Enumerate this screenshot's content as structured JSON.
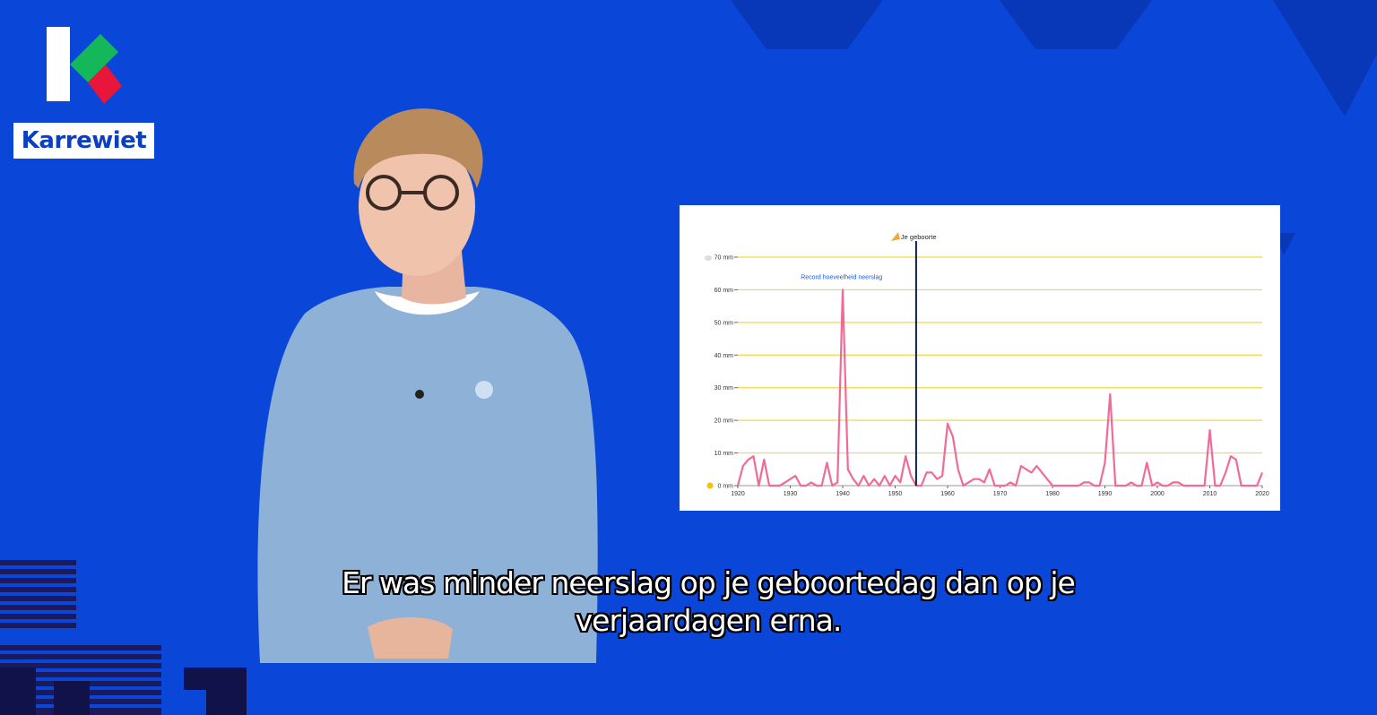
{
  "brand": {
    "name": "Karrewiet"
  },
  "icons": {
    "birth_marker": "party-popper-icon",
    "y_top_icon": "cloud-icon",
    "y_bottom_icon": "sun-icon"
  },
  "colors": {
    "background": "#0a46d8",
    "line": "#f06a9a",
    "grid": "#f5d742",
    "marker": "#0a1f5c",
    "annotation": "#1a5be0"
  },
  "chart_data": {
    "type": "line",
    "xlabel": "",
    "ylabel": "",
    "x_ticks": [
      "1920",
      "1930",
      "1940",
      "1950",
      "1960",
      "1970",
      "1980",
      "1990",
      "2000",
      "2010",
      "2020"
    ],
    "y_ticks": [
      "0 mm",
      "10 mm",
      "20 mm",
      "30 mm",
      "40 mm",
      "50 mm",
      "60 mm",
      "70 mm"
    ],
    "xlim": [
      1920,
      2020
    ],
    "ylim": [
      0,
      70
    ],
    "grid": true,
    "marker": {
      "x": 1954,
      "label": "Je geboorte"
    },
    "annotation": {
      "text": "Record hoeveelheid neerslag",
      "x": 1940,
      "y": 60
    },
    "series": [
      {
        "x": [
          1920,
          1921,
          1922,
          1923,
          1924,
          1925,
          1926,
          1927,
          1928,
          1929,
          1930,
          1931,
          1932,
          1933,
          1934,
          1935,
          1936,
          1937,
          1938,
          1939,
          1940,
          1941,
          1942,
          1943,
          1944,
          1945,
          1946,
          1947,
          1948,
          1949,
          1950,
          1951,
          1952,
          1953,
          1954,
          1955,
          1956,
          1957,
          1958,
          1959,
          1960,
          1961,
          1962,
          1963,
          1964,
          1965,
          1966,
          1967,
          1968,
          1969,
          1970,
          1971,
          1972,
          1973,
          1974,
          1975,
          1976,
          1977,
          1978,
          1979,
          1980,
          1981,
          1982,
          1983,
          1984,
          1985,
          1986,
          1987,
          1988,
          1989,
          1990,
          1991,
          1992,
          1993,
          1994,
          1995,
          1996,
          1997,
          1998,
          1999,
          2000,
          2001,
          2002,
          2003,
          2004,
          2005,
          2006,
          2007,
          2008,
          2009,
          2010,
          2011,
          2012,
          2013,
          2014,
          2015,
          2016,
          2017,
          2018,
          2019,
          2020
        ],
        "values": [
          0,
          6,
          8,
          9,
          0,
          8,
          0,
          0,
          0,
          1,
          2,
          3,
          0,
          0,
          1,
          0,
          0,
          7,
          0,
          1,
          60,
          5,
          2,
          0,
          3,
          0,
          2,
          0,
          3,
          0,
          3,
          1,
          9,
          3,
          0,
          0,
          4,
          4,
          2,
          3,
          19,
          15,
          5,
          0,
          1,
          2,
          2,
          1,
          5,
          0,
          0,
          0,
          1,
          0,
          6,
          5,
          4,
          6,
          4,
          2,
          0,
          0,
          0,
          0,
          0,
          0,
          1,
          1,
          0,
          0,
          7,
          28,
          0,
          0,
          0,
          1,
          0,
          0,
          7,
          0,
          1,
          0,
          0,
          1,
          1,
          0,
          0,
          0,
          0,
          0,
          17,
          0,
          0,
          4,
          9,
          8,
          0,
          0,
          0,
          0,
          4
        ]
      }
    ]
  },
  "subtitles": {
    "line1": "Er was minder neerslag op je geboortedag dan op je",
    "line2": "verjaardagen erna."
  }
}
